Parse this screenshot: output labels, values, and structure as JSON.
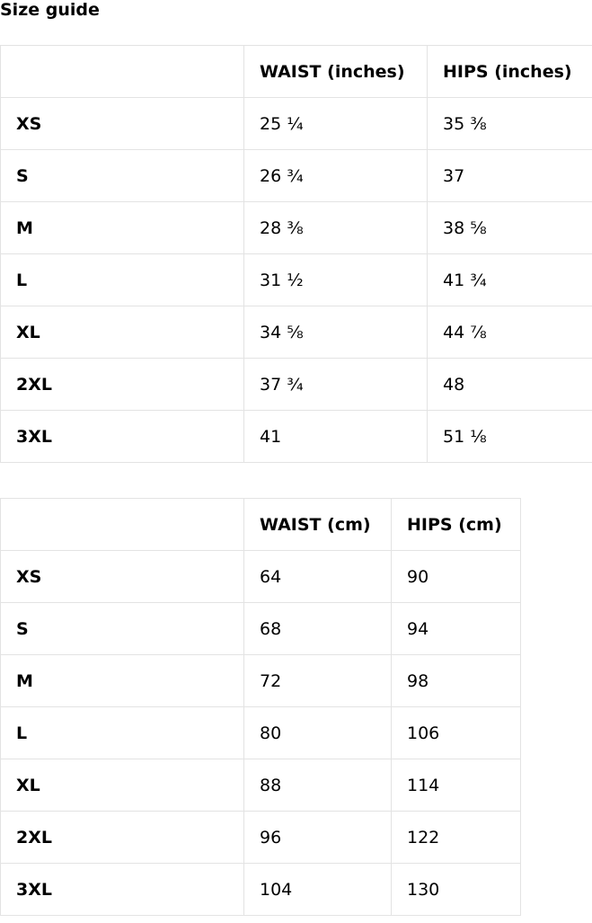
{
  "title": "Size guide",
  "inches_table": {
    "headers": [
      "",
      "WAIST (inches)",
      "HIPS (inches)"
    ],
    "rows": [
      [
        "XS",
        "25 ¼",
        "35 ⅜"
      ],
      [
        "S",
        "26 ¾",
        "37"
      ],
      [
        "M",
        "28 ⅜",
        "38 ⅝"
      ],
      [
        "L",
        "31 ½",
        "41 ¾"
      ],
      [
        "XL",
        "34 ⅝",
        "44 ⅞"
      ],
      [
        "2XL",
        "37 ¾",
        "48"
      ],
      [
        "3XL",
        "41",
        "51 ⅛"
      ]
    ]
  },
  "cm_table": {
    "headers": [
      "",
      "WAIST (cm)",
      "HIPS (cm)"
    ],
    "rows": [
      [
        "XS",
        "64",
        "90"
      ],
      [
        "S",
        "68",
        "94"
      ],
      [
        "M",
        "72",
        "98"
      ],
      [
        "L",
        "80",
        "106"
      ],
      [
        "XL",
        "88",
        "114"
      ],
      [
        "2XL",
        "96",
        "122"
      ],
      [
        "3XL",
        "104",
        "130"
      ]
    ]
  }
}
